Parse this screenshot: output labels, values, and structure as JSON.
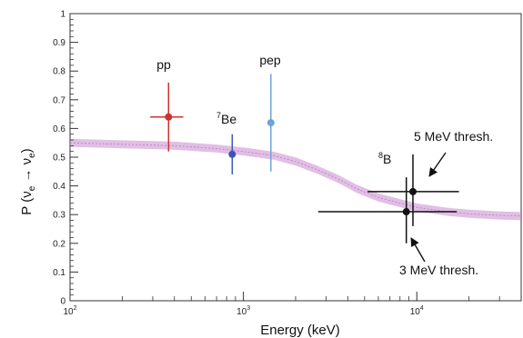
{
  "chart_data": {
    "type": "scatter",
    "xscale": "log",
    "xlim": [
      100,
      40000
    ],
    "ylim": [
      0,
      1
    ],
    "xlabel": "Energy (keV)",
    "ylabel": {
      "base": "P (ν",
      "sub1": "e",
      "arrow": " → ν",
      "sub2": "e",
      "close": ")"
    },
    "x_ticks": [
      {
        "value": 100,
        "base": "10",
        "exp": "2"
      },
      {
        "value": 1000,
        "base": "10",
        "exp": "3"
      },
      {
        "value": 10000,
        "base": "10",
        "exp": "4"
      }
    ],
    "y_ticks": [
      "0",
      "0.1",
      "0.2",
      "0.3",
      "0.4",
      "0.5",
      "0.6",
      "0.7",
      "0.8",
      "0.9",
      "1"
    ],
    "band": {
      "color": "#c98ad0",
      "points": [
        {
          "x": 100,
          "y": 0.55
        },
        {
          "x": 200,
          "y": 0.545
        },
        {
          "x": 400,
          "y": 0.54
        },
        {
          "x": 700,
          "y": 0.53
        },
        {
          "x": 1000,
          "y": 0.52
        },
        {
          "x": 1500,
          "y": 0.505
        },
        {
          "x": 2000,
          "y": 0.485
        },
        {
          "x": 2700,
          "y": 0.455
        },
        {
          "x": 3500,
          "y": 0.425
        },
        {
          "x": 4500,
          "y": 0.39
        },
        {
          "x": 6000,
          "y": 0.36
        },
        {
          "x": 8000,
          "y": 0.34
        },
        {
          "x": 10000,
          "y": 0.325
        },
        {
          "x": 15000,
          "y": 0.31
        },
        {
          "x": 20000,
          "y": 0.303
        },
        {
          "x": 30000,
          "y": 0.297
        },
        {
          "x": 40000,
          "y": 0.295
        }
      ],
      "half_width": 0.014
    },
    "points": [
      {
        "name": "pp",
        "x": 370,
        "y": 0.64,
        "yerr_low": 0.52,
        "yerr_high": 0.76,
        "xerr_low": 290,
        "xerr_high": 450,
        "color": "#cc3333",
        "label_color": "#cc3333"
      },
      {
        "name": "7Be",
        "x": 862,
        "y": 0.51,
        "yerr_low": 0.44,
        "yerr_high": 0.58,
        "xerr_low": 840,
        "xerr_high": 885,
        "color": "#3a55b5",
        "label_color": "#111111"
      },
      {
        "name": "pep",
        "x": 1440,
        "y": 0.62,
        "yerr_low": 0.45,
        "yerr_high": 0.79,
        "xerr_low": 1420,
        "xerr_high": 1460,
        "color": "#6fa2d6",
        "label_color": "#111111"
      },
      {
        "name": "8B-5MeV",
        "x": 9500,
        "y": 0.38,
        "yerr_low": 0.26,
        "yerr_high": 0.51,
        "xerr_low": 5200,
        "xerr_high": 17500,
        "color": "#111111"
      },
      {
        "name": "8B-3MeV",
        "x": 8700,
        "y": 0.31,
        "yerr_low": 0.2,
        "yerr_high": 0.43,
        "xerr_low": 2700,
        "xerr_high": 17000,
        "color": "#111111"
      }
    ],
    "labels": {
      "pp": "pp",
      "be7": {
        "sup": "7",
        "base": "Be"
      },
      "pep": "pep",
      "b8": {
        "sup": "8",
        "base": "B"
      },
      "thresh5": "5 MeV thresh.",
      "thresh3": "3 MeV thresh."
    }
  }
}
